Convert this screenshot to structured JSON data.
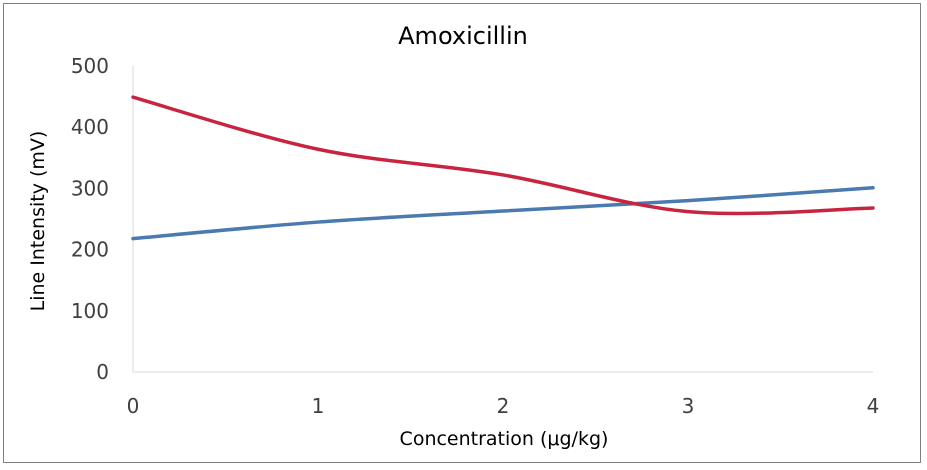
{
  "chart_data": {
    "type": "line",
    "title": "Amoxicillin",
    "xlabel": "Concentration (μg/kg)",
    "ylabel": "Line Intensity (mV)",
    "x": [
      0,
      1,
      2,
      3,
      4
    ],
    "xlim": [
      0,
      4
    ],
    "ylim": [
      0,
      500
    ],
    "x_ticks": [
      "0",
      "1",
      "2",
      "3",
      "4"
    ],
    "y_ticks": [
      "0",
      "100",
      "200",
      "300",
      "400",
      "500"
    ],
    "grid": false,
    "legend": "none",
    "series": [
      {
        "color": "#4a7ab0",
        "values": [
          218,
          245,
          263,
          280,
          301
        ]
      },
      {
        "color": "#c8243f",
        "values": [
          449,
          364,
          322,
          262,
          268
        ]
      }
    ]
  }
}
